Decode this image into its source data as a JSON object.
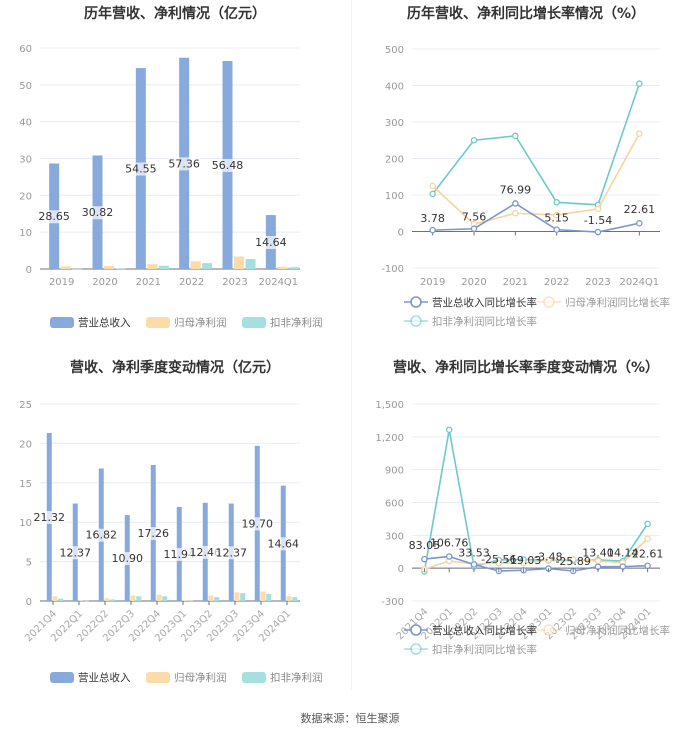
{
  "footer": {
    "source": "数据来源：恒生聚源"
  },
  "colors": {
    "revenue": "#88a9dc",
    "net_profit": "#fbdba8",
    "deducted_profit": "#a6dfe0",
    "rev_growth_line": "#7b96cf",
    "np_growth_line": "#f8d39b",
    "dp_growth_line": "#6cc9ce"
  },
  "chart_data": [
    {
      "id": "annual-revenue-profit",
      "type": "bar",
      "title": "历年营收、净利情况（亿元）",
      "categories": [
        "2019",
        "2020",
        "2021",
        "2022",
        "2023",
        "2024Q1"
      ],
      "series": [
        {
          "name": "营业总收入",
          "values": [
            28.65,
            30.82,
            54.55,
            57.36,
            56.48,
            14.64
          ],
          "labels": [
            "28.65",
            "30.82",
            "54.55",
            "57.36",
            "56.48",
            "14.64"
          ]
        },
        {
          "name": "归母净利润",
          "values": [
            0.7,
            0.8,
            1.3,
            2.1,
            3.4,
            0.6
          ]
        },
        {
          "name": "扣非净利润",
          "values": [
            0.05,
            0.1,
            0.9,
            1.6,
            2.7,
            0.5
          ]
        }
      ],
      "yticks": [
        "0",
        "10",
        "20",
        "30",
        "40",
        "50",
        "60"
      ],
      "ylim": [
        0,
        60
      ],
      "xlabel": "",
      "ylabel": "",
      "grid": true,
      "legend_position": "bottom"
    },
    {
      "id": "annual-growth",
      "type": "line",
      "title": "历年营收、净利同比增长率情况（%）",
      "categories": [
        "2019",
        "2020",
        "2021",
        "2022",
        "2023",
        "2024Q1"
      ],
      "series": [
        {
          "name": "营业总收入同比增长率",
          "values": [
            3.78,
            7.56,
            76.99,
            5.15,
            -1.54,
            22.61
          ],
          "labels": [
            "3.78",
            "7.56",
            "76.99",
            "5.15",
            "-1.54",
            "22.61"
          ]
        },
        {
          "name": "归母净利润同比增长率",
          "values": [
            125,
            20,
            50,
            45,
            62,
            268
          ]
        },
        {
          "name": "扣非净利润同比增长率",
          "values": [
            103,
            250,
            262,
            80,
            73,
            405
          ]
        }
      ],
      "yticks": [
        "-100",
        "0",
        "100",
        "200",
        "300",
        "400",
        "500"
      ],
      "ylim": [
        -100,
        500
      ],
      "xlabel": "",
      "ylabel": "",
      "grid": true,
      "legend_position": "bottom"
    },
    {
      "id": "quarterly-revenue-profit",
      "type": "bar",
      "title": "营收、净利季度变动情况（亿元）",
      "categories": [
        "2021Q4",
        "2022Q1",
        "2022Q2",
        "2022Q3",
        "2022Q4",
        "2023Q1",
        "2023Q2",
        "2023Q3",
        "2023Q4",
        "2024Q1"
      ],
      "series": [
        {
          "name": "营业总收入",
          "values": [
            21.32,
            12.37,
            16.82,
            10.9,
            17.26,
            11.94,
            12.46,
            12.37,
            19.7,
            14.64
          ],
          "labels": [
            "21.32",
            "12.37",
            "16.82",
            "10.90",
            "17.26",
            "11.94",
            "12.46",
            "12.37",
            "19.70",
            "14.64"
          ]
        },
        {
          "name": "归母净利润",
          "values": [
            0.6,
            0.05,
            0.35,
            0.7,
            0.8,
            0.1,
            0.7,
            1.1,
            1.2,
            0.6
          ]
        },
        {
          "name": "扣非净利润",
          "values": [
            0.3,
            0.03,
            0.2,
            0.6,
            0.6,
            0.05,
            0.5,
            1.0,
            0.9,
            0.5
          ]
        }
      ],
      "yticks": [
        "0",
        "5",
        "10",
        "15",
        "20",
        "25"
      ],
      "ylim": [
        0,
        25
      ],
      "xlabel": "",
      "ylabel": "",
      "grid": true,
      "legend_position": "bottom"
    },
    {
      "id": "quarterly-growth",
      "type": "line",
      "title": "营收、净利同比增长率季度变动情况（%）",
      "categories": [
        "2021Q4",
        "2022Q1",
        "2022Q2",
        "2022Q3",
        "2022Q4",
        "2023Q1",
        "2023Q2",
        "2023Q3",
        "2023Q4",
        "2024Q1"
      ],
      "series": [
        {
          "name": "营业总收入同比增长率",
          "values": [
            83.05,
            106.76,
            33.53,
            -25.56,
            -19.03,
            -3.48,
            -25.89,
            13.4,
            14.14,
            22.61
          ],
          "labels": [
            "83.05",
            "106.76",
            "33.53",
            "-25.56",
            "-19.03",
            "-3.48",
            "-25.89",
            "13.40",
            "14.14",
            "22.61"
          ]
        },
        {
          "name": "归母净利润同比增长率",
          "values": [
            -10,
            65,
            40,
            45,
            45,
            75,
            80,
            65,
            50,
            270
          ]
        },
        {
          "name": "扣非净利润同比增长率",
          "values": [
            -30,
            1265,
            15,
            75,
            80,
            70,
            70,
            75,
            65,
            405
          ]
        }
      ],
      "yticks": [
        "-300",
        "0",
        "300",
        "600",
        "900",
        "1,200",
        "1,500"
      ],
      "ylim": [
        -300,
        1500
      ],
      "xlabel": "",
      "ylabel": "",
      "grid": true,
      "legend_position": "bottom"
    }
  ]
}
